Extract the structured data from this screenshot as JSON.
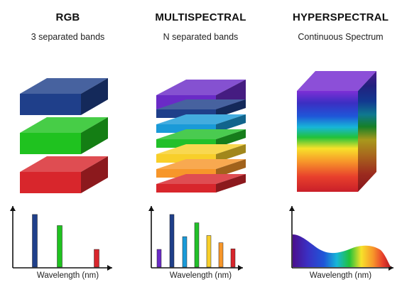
{
  "columns": [
    {
      "title": "RGB",
      "subtitle": "3 separated bands",
      "slabs": [
        "#1f3f8a",
        "#1fc21f",
        "#d8262c"
      ],
      "bars": [
        {
          "color": "#1f3f8a",
          "value": 0.95
        },
        {
          "color": "#1fc21f",
          "value": 0.75
        },
        {
          "color": "#d8262c",
          "value": 0.32
        }
      ],
      "xlabel": "Wavelength (nm)"
    },
    {
      "title": "MULTISPECTRAL",
      "subtitle": "N separated bands",
      "slabs": [
        "#6a2bc7",
        "#1f3f8a",
        "#1a9ad8",
        "#22c02a",
        "#f8cf2a",
        "#f7962a",
        "#d8262c"
      ],
      "bars": [
        {
          "color": "#6a2bc7",
          "value": 0.32
        },
        {
          "color": "#1f3f8a",
          "value": 0.95
        },
        {
          "color": "#1a9ad8",
          "value": 0.55
        },
        {
          "color": "#22c02a",
          "value": 0.8
        },
        {
          "color": "#f8cf2a",
          "value": 0.57
        },
        {
          "color": "#f7962a",
          "value": 0.44
        },
        {
          "color": "#d8262c",
          "value": 0.33
        }
      ],
      "xlabel": "Wavelength (nm)"
    },
    {
      "title": "HYPERSPECTRAL",
      "subtitle": "Continuous Spectrum",
      "xlabel": "Wavelength (nm)"
    }
  ]
}
